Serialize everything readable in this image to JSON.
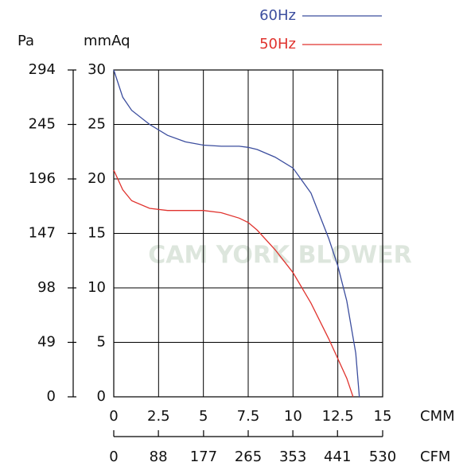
{
  "chart_data": {
    "type": "line",
    "xlabel": "CMM",
    "x2label": "CFM",
    "ylabel": "mmAq",
    "y2label": "Pa",
    "watermark": "CAM YORK BLOWER",
    "xlim": [
      0,
      15
    ],
    "xticks": [
      0,
      2.5,
      5,
      7.5,
      10,
      12.5,
      15
    ],
    "x2lim": [
      0,
      530
    ],
    "x2ticks": [
      0,
      88,
      177,
      265,
      353,
      441,
      530
    ],
    "ylim": [
      0,
      30
    ],
    "yticks": [
      0,
      5,
      10,
      15,
      20,
      25,
      30
    ],
    "y2lim": [
      0,
      294
    ],
    "y2ticks": [
      0,
      49,
      98,
      147,
      196,
      245,
      294
    ],
    "grid": true,
    "legend": "upper right",
    "series": [
      {
        "name": "60Hz",
        "color": "#3b4d9e",
        "x": [
          0,
          0.5,
          1,
          2,
          3,
          4,
          5,
          6,
          7,
          7.5,
          8,
          9,
          10,
          11,
          12,
          12.5,
          13,
          13.5,
          13.7
        ],
        "values": [
          30,
          27.5,
          26.3,
          25,
          24,
          23.4,
          23.1,
          23,
          23,
          22.9,
          22.7,
          22,
          21,
          18.7,
          14.5,
          12,
          8.8,
          4,
          0
        ]
      },
      {
        "name": "50Hz",
        "color": "#e0332e",
        "x": [
          0,
          0.5,
          1,
          2,
          3,
          5,
          6,
          7,
          7.5,
          8,
          9,
          10,
          11,
          12,
          12.5,
          13,
          13.35
        ],
        "values": [
          20.8,
          19,
          18,
          17.3,
          17.1,
          17.1,
          16.9,
          16.4,
          16,
          15.3,
          13.5,
          11.4,
          8.6,
          5.3,
          3.5,
          1.7,
          0
        ]
      }
    ]
  }
}
